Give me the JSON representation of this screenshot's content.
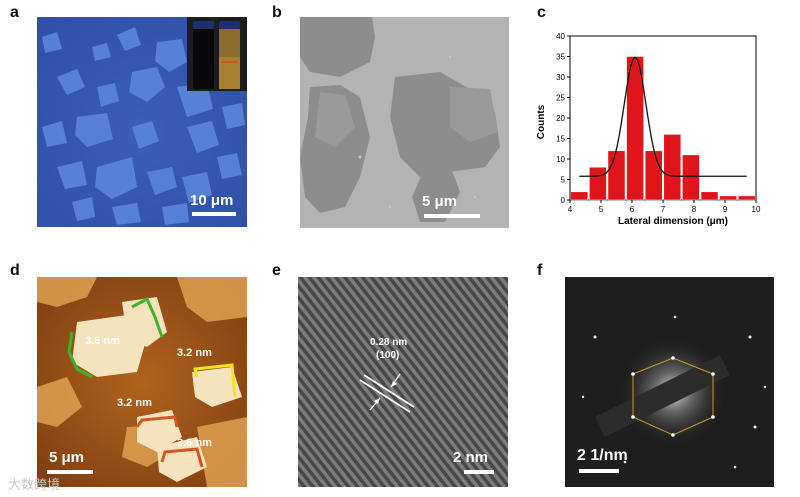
{
  "panels": {
    "a": {
      "letter": "a",
      "scale_text": "10 μm"
    },
    "b": {
      "letter": "b",
      "scale_text": "5 μm"
    },
    "c": {
      "letter": "c"
    },
    "d": {
      "letter": "d",
      "scale_text": "5 μm",
      "heights": [
        "3.6 nm",
        "3.2 nm",
        "3.2 nm",
        "3.6 nm"
      ]
    },
    "e": {
      "letter": "e",
      "scale_text": "2 nm",
      "lattice_spacing": "0.28 nm",
      "lattice_plane": "(100)"
    },
    "f": {
      "letter": "f",
      "scale_text": "2  1/nm"
    }
  },
  "watermark": "大数跨境",
  "colors": {
    "bar_fill": "#e0151b",
    "fit_line": "#111111",
    "afm_line_green": "#3db42b",
    "afm_line_yellow": "#f5e41c",
    "afm_line_orange": "#d8541e",
    "hexagon": "#c79a2a"
  },
  "chart_data": {
    "type": "bar",
    "xlabel": "Lateral dimension (μm)",
    "ylabel": "Counts",
    "xlim": [
      4,
      10
    ],
    "ylim": [
      0,
      40
    ],
    "xticks": [
      4,
      5,
      6,
      7,
      8,
      9,
      10
    ],
    "yticks": [
      0,
      5,
      10,
      15,
      20,
      25,
      30,
      35,
      40
    ],
    "bins": [
      {
        "x": 4.3,
        "count": 2
      },
      {
        "x": 4.9,
        "count": 8
      },
      {
        "x": 5.5,
        "count": 12
      },
      {
        "x": 6.1,
        "count": 35
      },
      {
        "x": 6.7,
        "count": 12
      },
      {
        "x": 7.3,
        "count": 16
      },
      {
        "x": 7.9,
        "count": 11
      },
      {
        "x": 8.5,
        "count": 2
      },
      {
        "x": 9.1,
        "count": 1
      },
      {
        "x": 9.7,
        "count": 1
      }
    ],
    "bin_width": 0.55,
    "fit": {
      "type": "gaussian",
      "center": 6.1,
      "sigma": 0.35,
      "amplitude": 29,
      "baseline": 5.8,
      "x_range": [
        4.3,
        9.7
      ]
    },
    "grid": false
  }
}
